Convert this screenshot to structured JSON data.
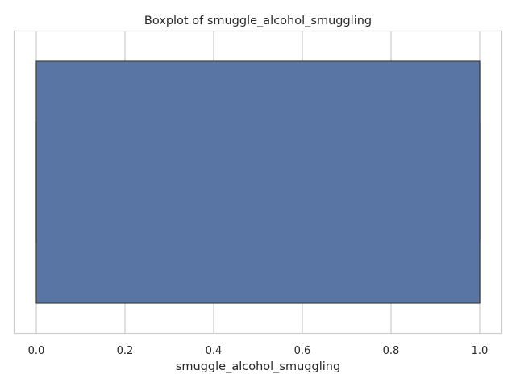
{
  "chart_data": {
    "type": "box",
    "title": "Boxplot of smuggle_alcohol_smuggling",
    "xlabel": "smuggle_alcohol_smuggling",
    "ylabel": "",
    "xlim": [
      -0.05,
      1.05
    ],
    "xticks": [
      0.0,
      0.2,
      0.4,
      0.6,
      0.8,
      1.0
    ],
    "xtick_labels": [
      "0.0",
      "0.2",
      "0.4",
      "0.6",
      "0.8",
      "1.0"
    ],
    "grid": true,
    "box": {
      "whisker_low": 0.0,
      "q1": 0.0,
      "median": 1.0,
      "q3": 1.0,
      "whisker_high": 1.0
    },
    "colors": {
      "box_fill": "#5975a4",
      "box_edge": "#3d3d3d",
      "grid": "#cccccc",
      "axes_edge": "#cccccc"
    }
  }
}
